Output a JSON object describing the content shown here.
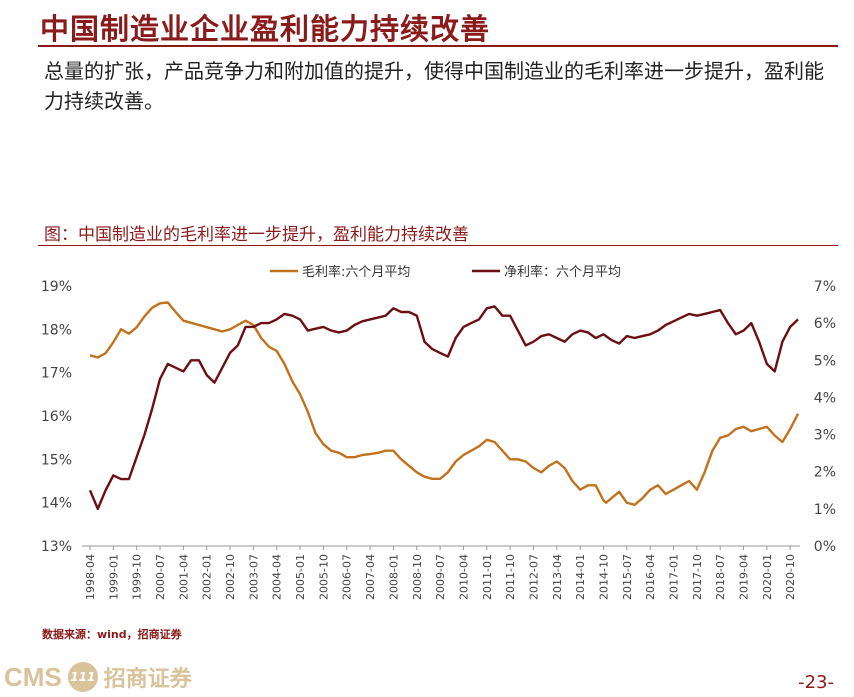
{
  "slide": {
    "title": "中国制造业企业盈利能力持续改善",
    "intro": "总量的扩张，产品竞争力和附加值的提升，使得中国制造业的毛利率进一步提升，盈利能力持续改善。",
    "figure_caption": "图：中国制造业的毛利率进一步提升，盈利能力持续改善",
    "source": "数据来源：wind，招商证券",
    "page_number": "-23-"
  },
  "logo": {
    "latin": "CMS",
    "mark": "111",
    "chinese": "招商证券"
  },
  "colors": {
    "accent": "#8b1a1a",
    "gross": "#c0721e",
    "net": "#6b0f12",
    "logo": "#d8c39a"
  },
  "chart_data": {
    "type": "line",
    "title": "",
    "legend_position": "top",
    "grid": false,
    "x_ticks": [
      "1998-04",
      "1999-01",
      "1999-10",
      "2000-07",
      "2001-04",
      "2002-01",
      "2002-10",
      "2003-07",
      "2004-04",
      "2005-01",
      "2005-10",
      "2006-07",
      "2007-04",
      "2008-01",
      "2008-10",
      "2009-07",
      "2010-04",
      "2011-01",
      "2011-10",
      "2012-07",
      "2013-04",
      "2014-01",
      "2014-10",
      "2015-07",
      "2016-04",
      "2017-01",
      "2017-10",
      "2018-07",
      "2019-04",
      "2020-01",
      "2020-10"
    ],
    "left_axis": {
      "ticks": [
        "13%",
        "14%",
        "15%",
        "16%",
        "17%",
        "18%",
        "19%"
      ],
      "min": 13,
      "max": 19
    },
    "right_axis": {
      "ticks": [
        "0%",
        "1%",
        "2%",
        "3%",
        "4%",
        "5%",
        "6%",
        "7%"
      ],
      "min": 0,
      "max": 7
    },
    "series": [
      {
        "name": "毛利率:六个月平均",
        "axis": "left",
        "points": [
          [
            "1998-04",
            17.4
          ],
          [
            "1998-07",
            17.35
          ],
          [
            "1998-10",
            17.45
          ],
          [
            "1999-01",
            17.7
          ],
          [
            "1999-04",
            18.0
          ],
          [
            "1999-07",
            17.9
          ],
          [
            "1999-10",
            18.05
          ],
          [
            "2000-01",
            18.3
          ],
          [
            "2000-04",
            18.5
          ],
          [
            "2000-07",
            18.6
          ],
          [
            "2000-10",
            18.62
          ],
          [
            "2001-01",
            18.4
          ],
          [
            "2001-04",
            18.2
          ],
          [
            "2001-07",
            18.15
          ],
          [
            "2001-10",
            18.1
          ],
          [
            "2002-01",
            18.05
          ],
          [
            "2002-04",
            18.0
          ],
          [
            "2002-07",
            17.95
          ],
          [
            "2002-10",
            18.0
          ],
          [
            "2003-01",
            18.1
          ],
          [
            "2003-04",
            18.2
          ],
          [
            "2003-07",
            18.1
          ],
          [
            "2003-10",
            17.8
          ],
          [
            "2004-01",
            17.6
          ],
          [
            "2004-04",
            17.5
          ],
          [
            "2004-07",
            17.2
          ],
          [
            "2004-10",
            16.8
          ],
          [
            "2005-01",
            16.5
          ],
          [
            "2005-04",
            16.1
          ],
          [
            "2005-07",
            15.6
          ],
          [
            "2005-10",
            15.35
          ],
          [
            "2006-01",
            15.2
          ],
          [
            "2006-04",
            15.15
          ],
          [
            "2006-07",
            15.05
          ],
          [
            "2006-10",
            15.05
          ],
          [
            "2007-01",
            15.1
          ],
          [
            "2007-04",
            15.12
          ],
          [
            "2007-07",
            15.15
          ],
          [
            "2007-10",
            15.2
          ],
          [
            "2008-01",
            15.2
          ],
          [
            "2008-04",
            15.0
          ],
          [
            "2008-07",
            14.85
          ],
          [
            "2008-10",
            14.7
          ],
          [
            "2009-01",
            14.6
          ],
          [
            "2009-04",
            14.55
          ],
          [
            "2009-07",
            14.55
          ],
          [
            "2009-10",
            14.7
          ],
          [
            "2010-01",
            14.95
          ],
          [
            "2010-04",
            15.1
          ],
          [
            "2010-07",
            15.2
          ],
          [
            "2010-10",
            15.3
          ],
          [
            "2011-01",
            15.45
          ],
          [
            "2011-04",
            15.4
          ],
          [
            "2011-07",
            15.2
          ],
          [
            "2011-10",
            15.0
          ],
          [
            "2012-01",
            15.0
          ],
          [
            "2012-04",
            14.95
          ],
          [
            "2012-07",
            14.8
          ],
          [
            "2012-10",
            14.7
          ],
          [
            "2013-01",
            14.85
          ],
          [
            "2013-04",
            14.95
          ],
          [
            "2013-07",
            14.8
          ],
          [
            "2013-10",
            14.5
          ],
          [
            "2014-01",
            14.3
          ],
          [
            "2014-04",
            14.4
          ],
          [
            "2014-07",
            14.4
          ],
          [
            "2014-10",
            14.05
          ],
          [
            "2014-11",
            14.0
          ],
          [
            "2015-01",
            14.1
          ],
          [
            "2015-04",
            14.25
          ],
          [
            "2015-07",
            14.0
          ],
          [
            "2015-10",
            13.95
          ],
          [
            "2016-01",
            14.1
          ],
          [
            "2016-04",
            14.3
          ],
          [
            "2016-07",
            14.4
          ],
          [
            "2016-10",
            14.2
          ],
          [
            "2017-01",
            14.3
          ],
          [
            "2017-04",
            14.4
          ],
          [
            "2017-07",
            14.5
          ],
          [
            "2017-10",
            14.3
          ],
          [
            "2018-01",
            14.7
          ],
          [
            "2018-04",
            15.2
          ],
          [
            "2018-07",
            15.5
          ],
          [
            "2018-10",
            15.55
          ],
          [
            "2019-01",
            15.7
          ],
          [
            "2019-04",
            15.75
          ],
          [
            "2019-07",
            15.65
          ],
          [
            "2019-10",
            15.7
          ],
          [
            "2020-01",
            15.75
          ],
          [
            "2020-04",
            15.55
          ],
          [
            "2020-07",
            15.4
          ],
          [
            "2020-10",
            15.7
          ],
          [
            "2021-01",
            16.05
          ]
        ]
      },
      {
        "name": "净利率：六个月平均",
        "axis": "right",
        "points": [
          [
            "1998-04",
            1.5
          ],
          [
            "1998-07",
            1.0
          ],
          [
            "1998-10",
            1.5
          ],
          [
            "1999-01",
            1.9
          ],
          [
            "1999-04",
            1.8
          ],
          [
            "1999-07",
            1.8
          ],
          [
            "1999-10",
            2.4
          ],
          [
            "2000-01",
            3.0
          ],
          [
            "2000-04",
            3.7
          ],
          [
            "2000-07",
            4.5
          ],
          [
            "2000-10",
            4.9
          ],
          [
            "2001-01",
            4.8
          ],
          [
            "2001-04",
            4.7
          ],
          [
            "2001-07",
            5.0
          ],
          [
            "2001-10",
            5.0
          ],
          [
            "2002-01",
            4.6
          ],
          [
            "2002-04",
            4.4
          ],
          [
            "2002-07",
            4.8
          ],
          [
            "2002-10",
            5.2
          ],
          [
            "2003-01",
            5.4
          ],
          [
            "2003-04",
            5.9
          ],
          [
            "2003-07",
            5.9
          ],
          [
            "2003-10",
            6.0
          ],
          [
            "2004-01",
            6.0
          ],
          [
            "2004-04",
            6.1
          ],
          [
            "2004-07",
            6.25
          ],
          [
            "2004-10",
            6.2
          ],
          [
            "2005-01",
            6.1
          ],
          [
            "2005-04",
            5.8
          ],
          [
            "2005-07",
            5.85
          ],
          [
            "2005-10",
            5.9
          ],
          [
            "2006-01",
            5.8
          ],
          [
            "2006-04",
            5.75
          ],
          [
            "2006-07",
            5.8
          ],
          [
            "2006-10",
            5.95
          ],
          [
            "2007-01",
            6.05
          ],
          [
            "2007-04",
            6.1
          ],
          [
            "2007-07",
            6.15
          ],
          [
            "2007-10",
            6.2
          ],
          [
            "2008-01",
            6.4
          ],
          [
            "2008-04",
            6.3
          ],
          [
            "2008-07",
            6.3
          ],
          [
            "2008-10",
            6.2
          ],
          [
            "2009-01",
            5.5
          ],
          [
            "2009-04",
            5.3
          ],
          [
            "2009-07",
            5.2
          ],
          [
            "2009-10",
            5.1
          ],
          [
            "2010-01",
            5.6
          ],
          [
            "2010-04",
            5.9
          ],
          [
            "2010-07",
            6.0
          ],
          [
            "2010-10",
            6.1
          ],
          [
            "2011-01",
            6.4
          ],
          [
            "2011-04",
            6.45
          ],
          [
            "2011-07",
            6.2
          ],
          [
            "2011-10",
            6.2
          ],
          [
            "2012-01",
            5.8
          ],
          [
            "2012-04",
            5.4
          ],
          [
            "2012-07",
            5.5
          ],
          [
            "2012-10",
            5.65
          ],
          [
            "2013-01",
            5.7
          ],
          [
            "2013-04",
            5.6
          ],
          [
            "2013-07",
            5.5
          ],
          [
            "2013-10",
            5.7
          ],
          [
            "2014-01",
            5.8
          ],
          [
            "2014-04",
            5.75
          ],
          [
            "2014-07",
            5.6
          ],
          [
            "2014-10",
            5.7
          ],
          [
            "2015-01",
            5.55
          ],
          [
            "2015-04",
            5.45
          ],
          [
            "2015-07",
            5.65
          ],
          [
            "2015-10",
            5.6
          ],
          [
            "2016-01",
            5.65
          ],
          [
            "2016-04",
            5.7
          ],
          [
            "2016-07",
            5.8
          ],
          [
            "2016-10",
            5.95
          ],
          [
            "2017-01",
            6.05
          ],
          [
            "2017-04",
            6.15
          ],
          [
            "2017-07",
            6.25
          ],
          [
            "2017-10",
            6.2
          ],
          [
            "2018-01",
            6.25
          ],
          [
            "2018-04",
            6.3
          ],
          [
            "2018-07",
            6.35
          ],
          [
            "2018-10",
            6.0
          ],
          [
            "2019-01",
            5.7
          ],
          [
            "2019-04",
            5.8
          ],
          [
            "2019-07",
            6.0
          ],
          [
            "2019-10",
            5.5
          ],
          [
            "2020-01",
            4.9
          ],
          [
            "2020-04",
            4.7
          ],
          [
            "2020-07",
            5.5
          ],
          [
            "2020-10",
            5.9
          ],
          [
            "2021-01",
            6.1
          ]
        ]
      }
    ]
  }
}
